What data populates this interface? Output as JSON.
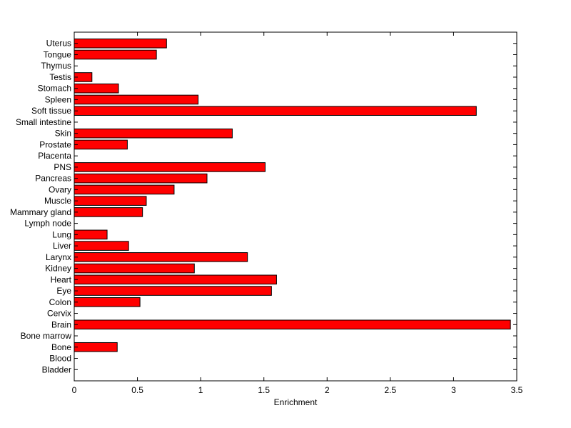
{
  "chart_data": {
    "type": "bar",
    "orientation": "horizontal",
    "title": "",
    "xlabel": "Enrichment",
    "ylabel": "",
    "xlim": [
      0,
      3.5
    ],
    "xticks": [
      "0",
      "0.5",
      "1",
      "1.5",
      "2",
      "2.5",
      "3",
      "3.5"
    ],
    "grid": false,
    "legend": "none",
    "bar_color": "#ff0000",
    "bar_edge_color": "#000000",
    "categories": [
      "Bladder",
      "Blood",
      "Bone",
      "Bone marrow",
      "Brain",
      "Cervix",
      "Colon",
      "Eye",
      "Heart",
      "Kidney",
      "Larynx",
      "Liver",
      "Lung",
      "Lymph node",
      "Mammary gland",
      "Muscle",
      "Ovary",
      "Pancreas",
      "PNS",
      "Placenta",
      "Prostate",
      "Skin",
      "Small intestine",
      "Soft tissue",
      "Spleen",
      "Stomach",
      "Testis",
      "Thymus",
      "Tongue",
      "Uterus"
    ],
    "values": [
      0,
      0,
      0.34,
      0,
      3.45,
      0,
      0.52,
      1.56,
      1.6,
      0.95,
      1.37,
      0.43,
      0.26,
      0,
      0.54,
      0.57,
      0.79,
      1.05,
      1.51,
      0,
      0.42,
      1.25,
      0,
      3.18,
      0.98,
      0.35,
      0.14,
      0,
      0.65,
      0.73
    ]
  }
}
